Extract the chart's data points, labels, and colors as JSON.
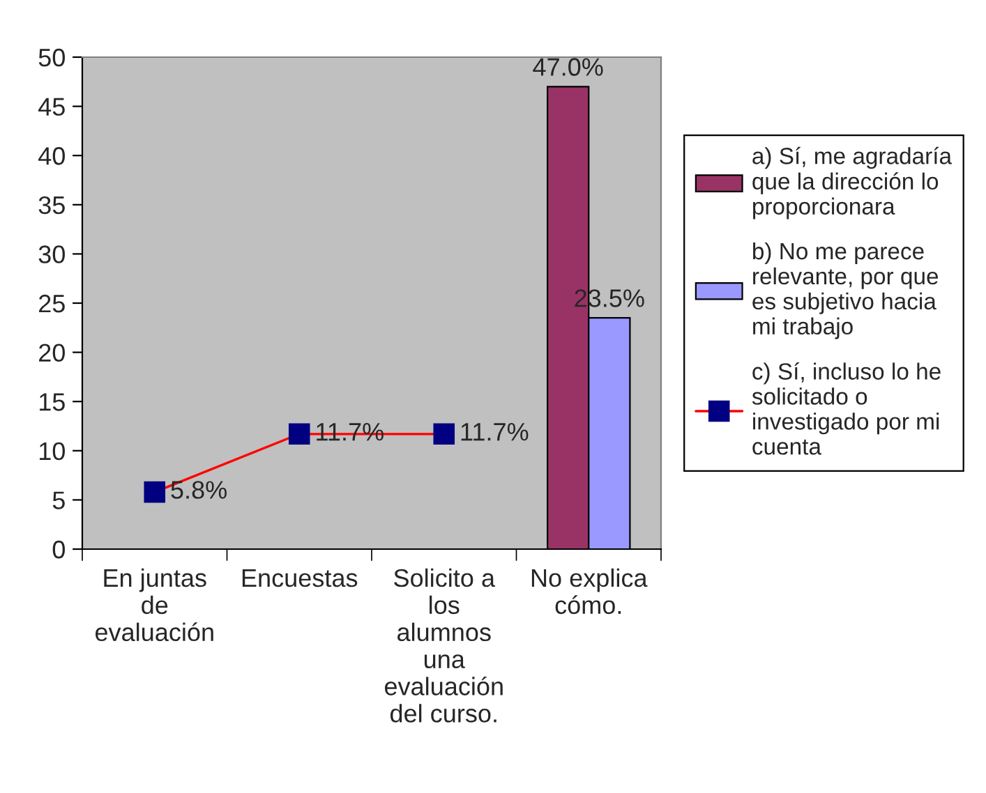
{
  "chart_data": {
    "type": "bar",
    "categories": [
      "En juntas de evaluación",
      "Encuestas",
      "Solicito a los alumnos una evaluación del curso.",
      "No explica cómo."
    ],
    "series": [
      {
        "name": "a) Sí, me agradaría que la dirección lo proporcionara",
        "color": "#993366",
        "values": [
          null,
          null,
          null,
          47.0
        ],
        "value_labels": [
          null,
          null,
          null,
          "47.0%"
        ]
      },
      {
        "name": "b) No me parece relevante, por que es subjetivo hacia mi trabajo",
        "color": "#9999ff",
        "values": [
          null,
          null,
          null,
          23.5
        ],
        "value_labels": [
          null,
          null,
          null,
          "23.5%"
        ]
      },
      {
        "name": "c) Sí, incluso lo he solicitado o investigado por mi cuenta",
        "type": "line",
        "color": "#ff0000",
        "colors": [
          "#000080",
          "#000080",
          "#000080",
          null
        ],
        "values": [
          5.8,
          11.7,
          11.7,
          null
        ],
        "value_labels": [
          "5.8%",
          "11.7%",
          "11.7%",
          null
        ]
      }
    ],
    "ylim": [
      0,
      50
    ],
    "yticks": [
      0,
      5,
      10,
      15,
      20,
      25,
      30,
      35,
      40,
      45,
      50
    ],
    "marker": "square",
    "grid": false,
    "legend": "right"
  }
}
